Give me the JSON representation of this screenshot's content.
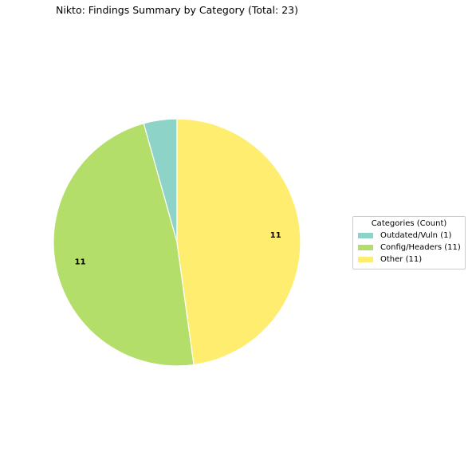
{
  "chart_data": {
    "type": "pie",
    "title": "Nikto: Findings Summary by Category (Total: 23)",
    "legend_title": "Categories (Count)",
    "legend_placement": "right",
    "start_angle_deg": 90,
    "direction": "counterclockwise",
    "slices": [
      {
        "label": "Outdated/Vuln (1)",
        "value": 1,
        "color": "#8dd3c7",
        "data_label": ""
      },
      {
        "label": "Config/Headers (11)",
        "value": 11,
        "color": "#b3de69",
        "data_label": "11"
      },
      {
        "label": "Other (11)",
        "value": 11,
        "color": "#ffed6f",
        "data_label": "11"
      }
    ]
  }
}
